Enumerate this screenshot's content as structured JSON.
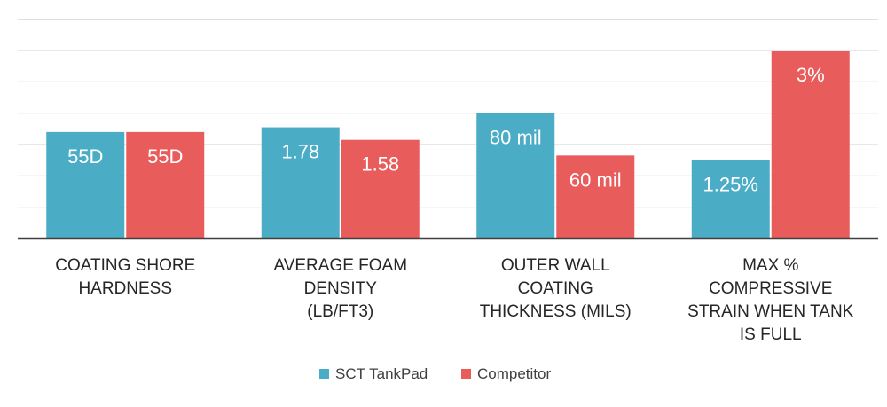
{
  "chart_data": {
    "type": "bar",
    "title": "",
    "xlabel": "",
    "ylabel": "",
    "ylim": [
      0,
      6
    ],
    "grid": true,
    "legend_position": "bottom",
    "categories": [
      [
        "COATING SHORE",
        "HARDNESS"
      ],
      [
        "AVERAGE FOAM",
        "DENSITY",
        "(LB/FT3)"
      ],
      [
        "OUTER WALL",
        "COATING",
        "THICKNESS (MILS)"
      ],
      [
        "MAX %",
        "COMPRESSIVE",
        "STRAIN WHEN TANK",
        "IS FULL"
      ]
    ],
    "series": [
      {
        "name": "SCT TankPad",
        "color": "#4bacc6",
        "values": [
          3.4,
          3.55,
          4.0,
          2.5
        ],
        "labels": [
          "55D",
          "1.78",
          "80 mil",
          "1.25%"
        ]
      },
      {
        "name": "Competitor",
        "color": "#e85c5c",
        "values": [
          3.4,
          3.15,
          2.65,
          6.0
        ],
        "labels": [
          "55D",
          "1.58",
          "60 mil",
          "3%"
        ]
      }
    ]
  }
}
